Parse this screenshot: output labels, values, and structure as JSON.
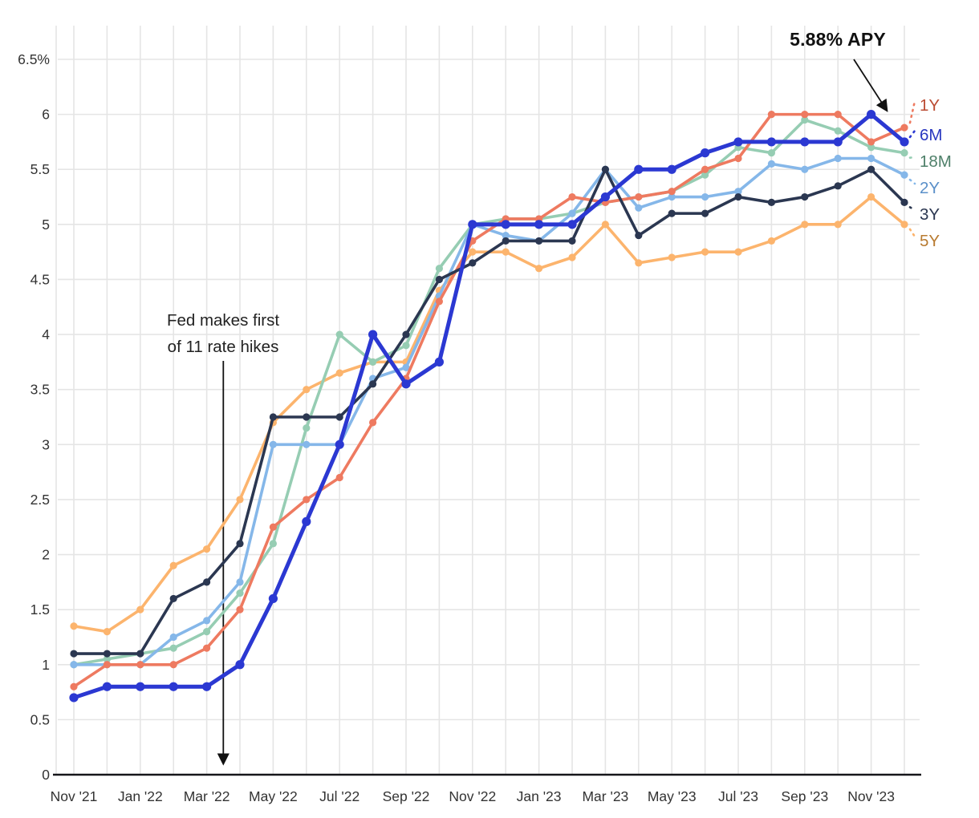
{
  "annotations": {
    "apy_label": "5.88% APY",
    "fed_line1": "Fed makes first",
    "fed_line2": "of 11 rate hikes"
  },
  "chart_data": {
    "type": "line",
    "title": "",
    "xlabel": "",
    "ylabel": "",
    "ylim": [
      0,
      6.5
    ],
    "grid": true,
    "legend_position": "right",
    "months": [
      "Nov '21",
      "Dec '21",
      "Jan '22",
      "Feb '22",
      "Mar '22",
      "Apr '22",
      "May '22",
      "Jun '22",
      "Jul '22",
      "Aug '22",
      "Sep '22",
      "Oct '22",
      "Nov '22",
      "Dec '22",
      "Jan '23",
      "Feb '23",
      "Mar '23",
      "Apr '23",
      "May '23",
      "Jun '23",
      "Jul '23",
      "Aug '23",
      "Sep '23",
      "Oct '23",
      "Nov '23",
      "Dec '23"
    ],
    "x_tick_labels": [
      "Nov '21",
      "Jan '22",
      "Mar '22",
      "May '22",
      "Jul '22",
      "Sep '22",
      "Nov '22",
      "Jan '23",
      "Mar '23",
      "May '23",
      "Jul '23",
      "Sep '23",
      "Nov '23"
    ],
    "y_tick_labels": [
      "0",
      "0.5",
      "1",
      "1.5",
      "2",
      "2.5",
      "3",
      "3.5",
      "4",
      "4.5",
      "5",
      "5.5",
      "6",
      "6.5%"
    ],
    "y_tick_values": [
      0,
      0.5,
      1,
      1.5,
      2,
      2.5,
      3,
      3.5,
      4,
      4.5,
      5,
      5.5,
      6,
      6.5
    ],
    "highlight_point": {
      "series": "1Y",
      "month": "Dec '23",
      "value": 5.88
    },
    "fed_hike_month_index": 4.5,
    "series": [
      {
        "name": "1Y",
        "color": "#ee7a60",
        "label_color": "#bb4c33",
        "values": [
          0.8,
          1.0,
          1.0,
          1.0,
          1.15,
          1.5,
          2.25,
          2.5,
          2.7,
          3.2,
          3.6,
          4.3,
          4.85,
          5.05,
          5.05,
          5.25,
          5.2,
          5.25,
          5.3,
          5.5,
          5.6,
          6.0,
          6.0,
          6.0,
          5.75,
          5.88
        ]
      },
      {
        "name": "6M",
        "color": "#2b38d2",
        "label_color": "#2937c0",
        "values": [
          0.7,
          0.8,
          0.8,
          0.8,
          0.8,
          1.0,
          1.6,
          2.3,
          3.0,
          4.0,
          3.55,
          3.75,
          5.0,
          5.0,
          5.0,
          5.0,
          5.25,
          5.5,
          5.5,
          5.65,
          5.75,
          5.75,
          5.75,
          5.75,
          6.0,
          5.75
        ]
      },
      {
        "name": "18M",
        "color": "#96cdb3",
        "label_color": "#4f806a",
        "values": [
          1.0,
          1.05,
          1.1,
          1.15,
          1.3,
          1.65,
          2.1,
          3.15,
          4.0,
          3.75,
          3.9,
          4.6,
          5.0,
          5.05,
          5.05,
          5.1,
          5.2,
          5.25,
          5.3,
          5.45,
          5.7,
          5.65,
          5.95,
          5.85,
          5.7,
          5.65
        ]
      },
      {
        "name": "2Y",
        "color": "#85b7e9",
        "label_color": "#5b90c9",
        "values": [
          1.0,
          1.0,
          1.0,
          1.25,
          1.4,
          1.75,
          3.0,
          3.0,
          3.0,
          3.6,
          3.7,
          4.35,
          5.0,
          4.9,
          4.85,
          5.1,
          5.5,
          5.15,
          5.25,
          5.25,
          5.3,
          5.55,
          5.5,
          5.6,
          5.6,
          5.45
        ]
      },
      {
        "name": "3Y",
        "color": "#2b3751",
        "label_color": "#2b3751",
        "values": [
          1.1,
          1.1,
          1.1,
          1.6,
          1.75,
          2.1,
          3.25,
          3.25,
          3.25,
          3.55,
          4.0,
          4.5,
          4.65,
          4.85,
          4.85,
          4.85,
          5.5,
          4.9,
          5.1,
          5.1,
          5.25,
          5.2,
          5.25,
          5.35,
          5.5,
          5.2
        ]
      },
      {
        "name": "5Y",
        "color": "#fcb46d",
        "label_color": "#b87b31",
        "values": [
          1.35,
          1.3,
          1.5,
          1.9,
          2.05,
          2.5,
          3.2,
          3.5,
          3.65,
          3.75,
          3.75,
          4.4,
          4.75,
          4.75,
          4.6,
          4.7,
          5.0,
          4.65,
          4.7,
          4.75,
          4.75,
          4.85,
          5.0,
          5.0,
          5.25,
          5.0
        ]
      }
    ],
    "draw_order": [
      "5Y",
      "18M",
      "2Y",
      "1Y",
      "3Y",
      "6M"
    ]
  },
  "style": {
    "grid_color": "#e5e5e5",
    "axis_color": "#16161a",
    "tick_text_color": "#333333",
    "arrow_color": "#111111"
  }
}
